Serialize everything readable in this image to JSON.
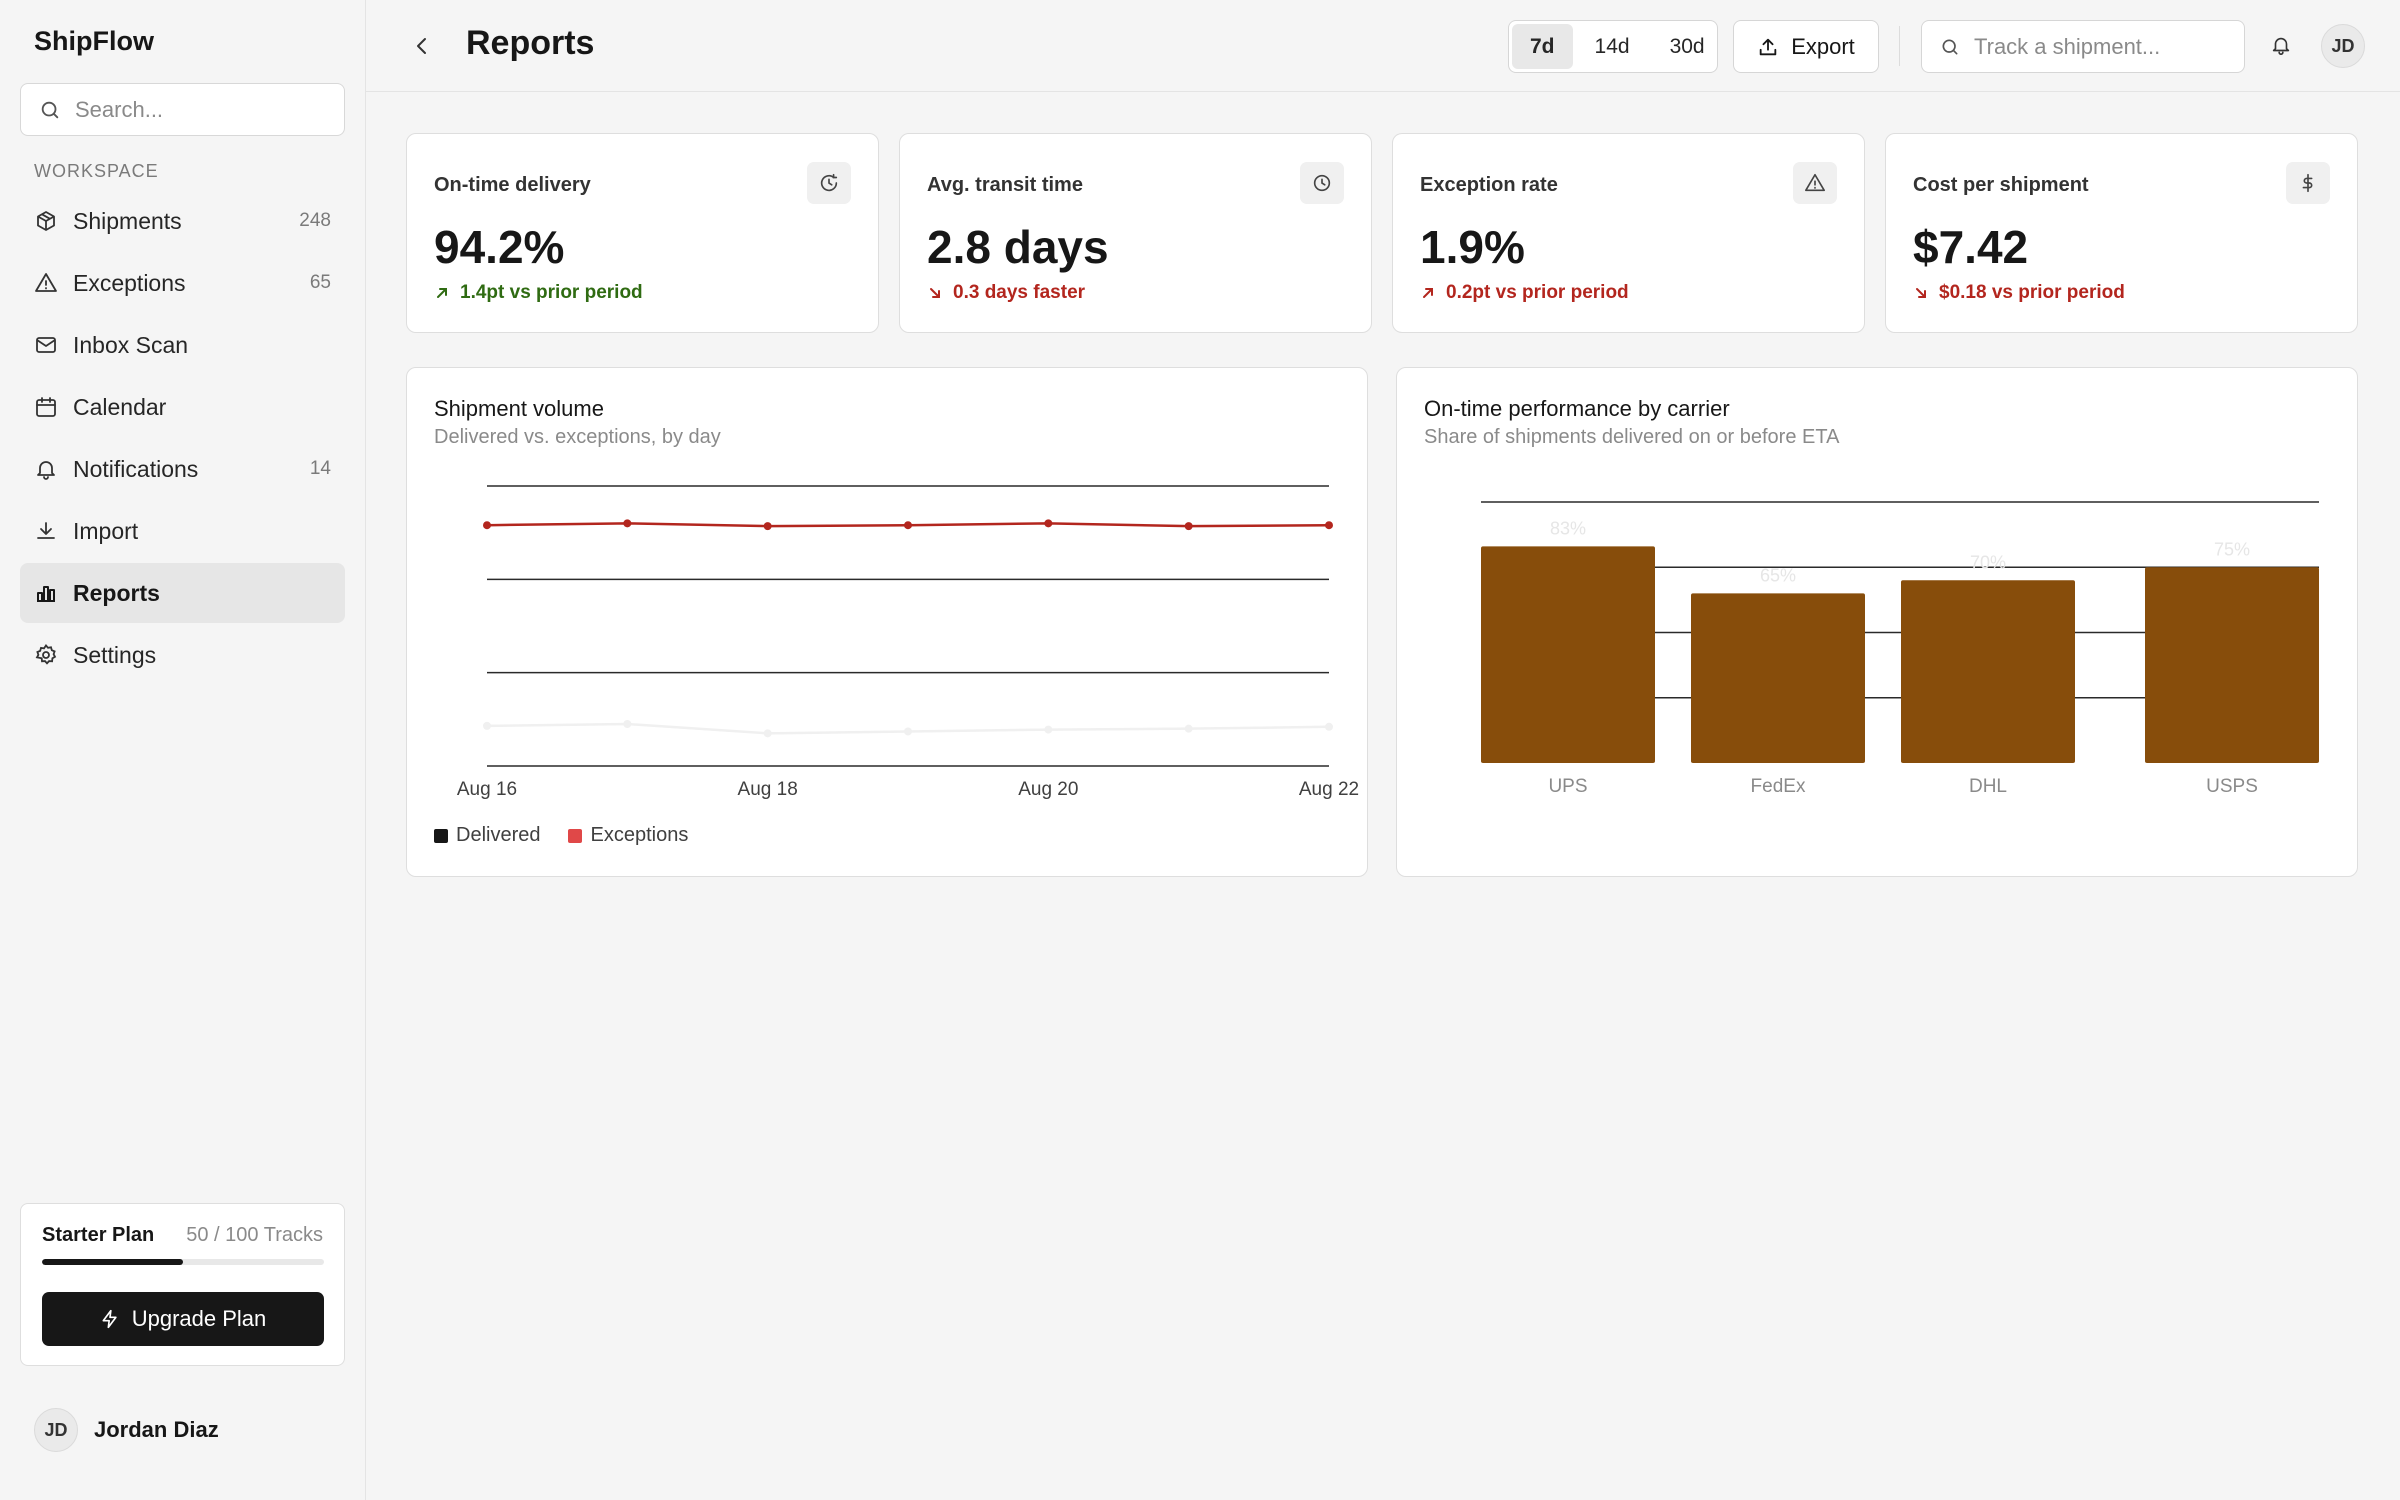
{
  "sidebar": {
    "brand": "ShipFlow",
    "search_placeholder": "Search...",
    "section_label": "WORKSPACE",
    "items": [
      {
        "label": "Shipments",
        "count": "248",
        "icon": "package-icon"
      },
      {
        "label": "Exceptions",
        "count": "65",
        "icon": "warning-icon"
      },
      {
        "label": "Inbox Scan",
        "count": "",
        "icon": "mail-icon"
      },
      {
        "label": "Calendar",
        "count": "",
        "icon": "calendar-icon"
      },
      {
        "label": "Notifications",
        "count": "14",
        "icon": "bell-icon"
      },
      {
        "label": "Import",
        "count": "",
        "icon": "download-icon"
      },
      {
        "label": "Reports",
        "count": "",
        "icon": "bar-chart-icon",
        "active": true
      },
      {
        "label": "Settings",
        "count": "",
        "icon": "gear-icon"
      }
    ],
    "plan": {
      "name": "Starter Plan",
      "usage": "50 / 100 Tracks",
      "progress": 0.5,
      "upgrade_label": "Upgrade Plan"
    },
    "user": {
      "initials": "JD",
      "name": "Jordan Diaz"
    }
  },
  "header": {
    "title": "Reports",
    "ranges": [
      "7d",
      "14d",
      "30d"
    ],
    "active_range": "7d",
    "export_label": "Export",
    "track_placeholder": "Track a shipment...",
    "avatar_initials": "JD"
  },
  "kpis": [
    {
      "label": "On-time delivery",
      "value": "94.2%",
      "delta": "1.4pt vs prior period",
      "trend": "up",
      "tone": "good",
      "icon": "clock-check-icon"
    },
    {
      "label": "Avg. transit time",
      "value": "2.8 days",
      "delta": "0.3 days faster",
      "trend": "down",
      "tone": "bad",
      "icon": "clock-icon"
    },
    {
      "label": "Exception rate",
      "value": "1.9%",
      "delta": "0.2pt vs prior period",
      "trend": "up",
      "tone": "bad",
      "icon": "warning-icon"
    },
    {
      "label": "Cost per shipment",
      "value": "$7.42",
      "delta": "$0.18 vs prior period",
      "trend": "down",
      "tone": "bad",
      "icon": "dollar-icon"
    }
  ],
  "colors": {
    "good": "#2f6b12",
    "bad": "#b3261e",
    "delivered_line": "#f0f0f0",
    "exceptions_line": "#b3261e",
    "bar_fill": "#874d0b",
    "delivered_swatch": "#171717",
    "exceptions_swatch": "#e04848"
  },
  "chart_data": [
    {
      "type": "line",
      "title": "Shipment volume",
      "subtitle": "Delivered vs. exceptions, by day",
      "x": [
        "Aug 16",
        "Aug 17",
        "Aug 18",
        "Aug 19",
        "Aug 20",
        "Aug 21",
        "Aug 22"
      ],
      "x_tick_labels": [
        "Aug 16",
        "Aug 18",
        "Aug 20",
        "Aug 22"
      ],
      "ylim": [
        0,
        3
      ],
      "grid": true,
      "legend": "bottom-left",
      "series": [
        {
          "name": "Delivered",
          "values": [
            0.43,
            0.45,
            0.35,
            0.37,
            0.39,
            0.4,
            0.42
          ]
        },
        {
          "name": "Exceptions",
          "values": [
            2.58,
            2.6,
            2.57,
            2.58,
            2.6,
            2.57,
            2.58
          ]
        }
      ]
    },
    {
      "type": "bar",
      "title": "On-time performance by carrier",
      "subtitle": "Share of shipments delivered on or before ETA",
      "categories": [
        "UPS",
        "FedEx",
        "DHL",
        "USPS"
      ],
      "values": [
        83,
        65,
        70,
        75
      ],
      "value_labels": [
        "83%",
        "65%",
        "70%",
        "75%"
      ],
      "ylim": [
        0,
        100
      ],
      "grid": true
    }
  ]
}
